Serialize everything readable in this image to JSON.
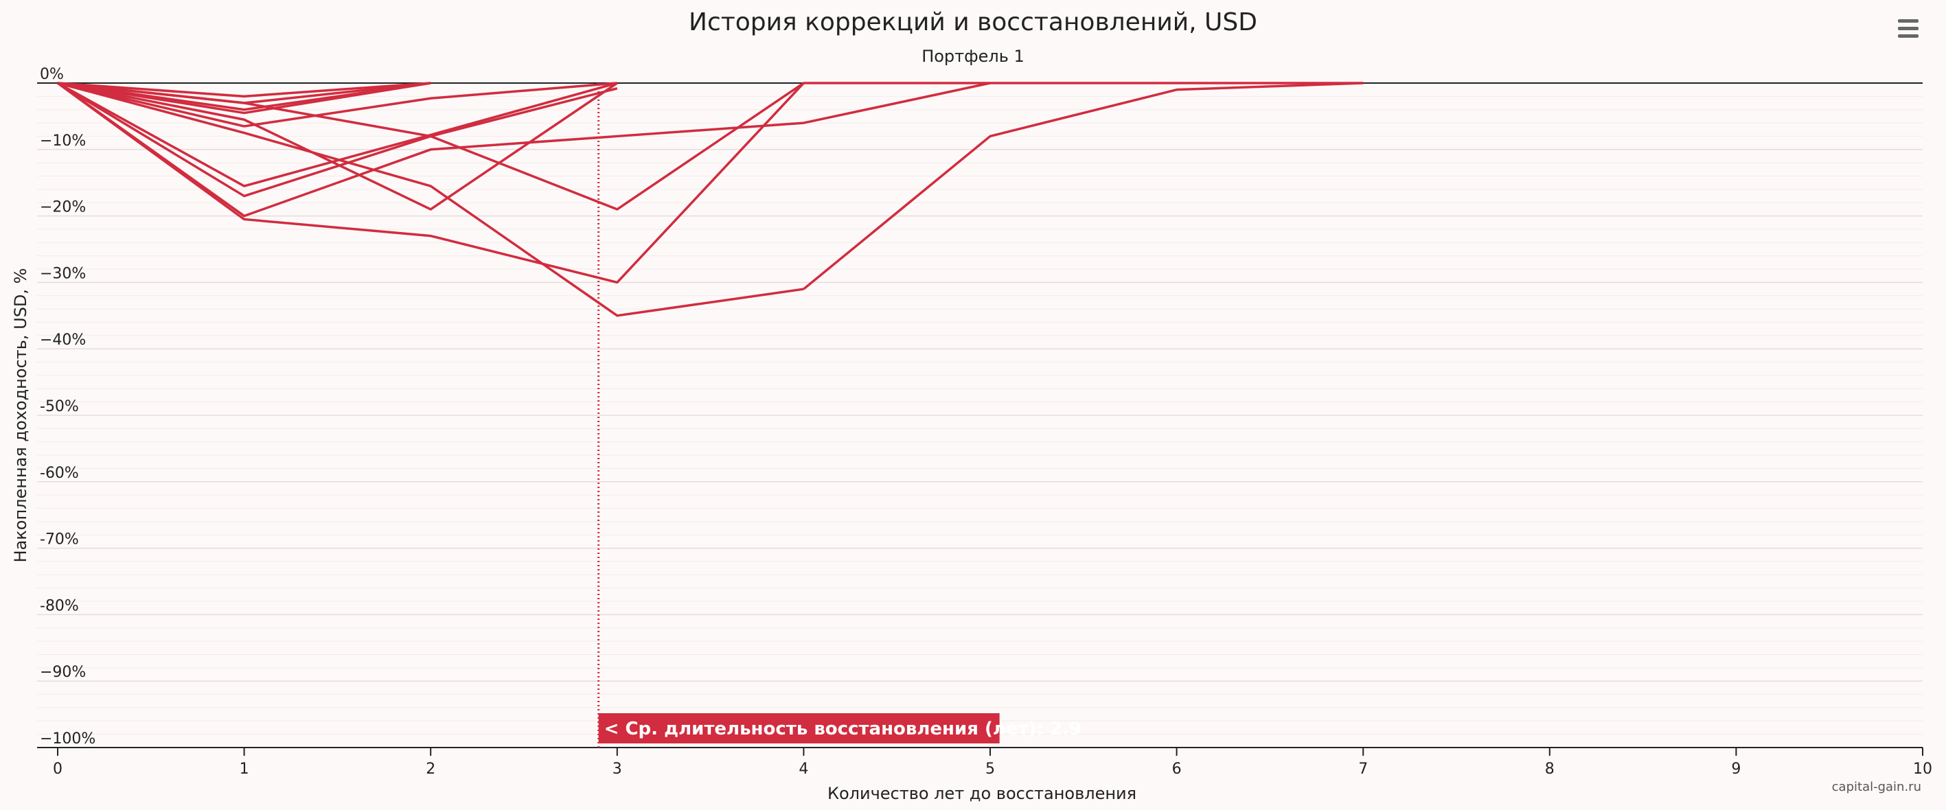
{
  "chart_data": {
    "type": "line",
    "title": "История коррекций и восстановлений, USD",
    "subtitle": "Портфель 1",
    "xlabel": "Количество лет до восстановления",
    "ylabel": "Накопленная доходность, USD, %",
    "xlim": [
      0,
      10
    ],
    "ylim": [
      -100,
      0
    ],
    "x_ticks": [
      "0",
      "1",
      "2",
      "3",
      "4",
      "5",
      "6",
      "7",
      "8",
      "9",
      "10"
    ],
    "y_ticks": [
      {
        "value": 0,
        "label": "0%"
      },
      {
        "value": -10,
        "label": "−10%"
      },
      {
        "value": -20,
        "label": "−20%"
      },
      {
        "value": -30,
        "label": "−30%"
      },
      {
        "value": -40,
        "label": "−40%"
      },
      {
        "value": -50,
        "label": "-50%"
      },
      {
        "value": -60,
        "label": "-60%"
      },
      {
        "value": -70,
        "label": "-70%"
      },
      {
        "value": -80,
        "label": "-80%"
      },
      {
        "value": -90,
        "label": "−90%"
      },
      {
        "value": -100,
        "label": "−100%"
      }
    ],
    "grid": true,
    "line_color": "#d12c3f",
    "series": [
      {
        "x": [
          0,
          1,
          2
        ],
        "y": [
          0,
          -2,
          0
        ]
      },
      {
        "x": [
          0,
          1,
          2
        ],
        "y": [
          0,
          -3,
          0
        ]
      },
      {
        "x": [
          0,
          1,
          2
        ],
        "y": [
          0,
          -4,
          0
        ]
      },
      {
        "x": [
          0,
          1,
          2
        ],
        "y": [
          0,
          -4.5,
          0
        ]
      },
      {
        "x": [
          0,
          1,
          2,
          3
        ],
        "y": [
          0,
          -6.5,
          -2.3,
          0
        ]
      },
      {
        "x": [
          0,
          1,
          2,
          3
        ],
        "y": [
          0,
          -5.5,
          -19,
          0
        ]
      },
      {
        "x": [
          0,
          1,
          2,
          3
        ],
        "y": [
          0,
          -15.5,
          -7.8,
          0
        ]
      },
      {
        "x": [
          0,
          1,
          2,
          3
        ],
        "y": [
          0,
          -17,
          -8,
          -0.8
        ]
      },
      {
        "x": [
          0,
          1,
          2,
          3,
          4
        ],
        "y": [
          0,
          -7.5,
          -15.5,
          -35,
          -31
        ]
      },
      {
        "x": [
          0,
          1,
          2,
          3,
          4
        ],
        "y": [
          0,
          -20.5,
          -23,
          -30,
          0
        ]
      },
      {
        "x": [
          0,
          1,
          2,
          3,
          4,
          5
        ],
        "y": [
          0,
          -20,
          -10,
          -8,
          -6,
          0
        ]
      },
      {
        "x": [
          0,
          1,
          2,
          3,
          4,
          5,
          6,
          7
        ],
        "y": [
          0,
          -3,
          -8,
          -19,
          0,
          0,
          0,
          0
        ]
      },
      {
        "x": [
          4,
          5,
          6,
          7
        ],
        "y": [
          -31,
          -8,
          -1,
          0
        ]
      }
    ],
    "annotation": {
      "x": 2.9,
      "label": "< Ср. длительность восстановления (лет): 2.9",
      "color": "#d12c3f"
    },
    "credit": "capital-gain.ru"
  },
  "menu_icon": "hamburger-menu-icon"
}
